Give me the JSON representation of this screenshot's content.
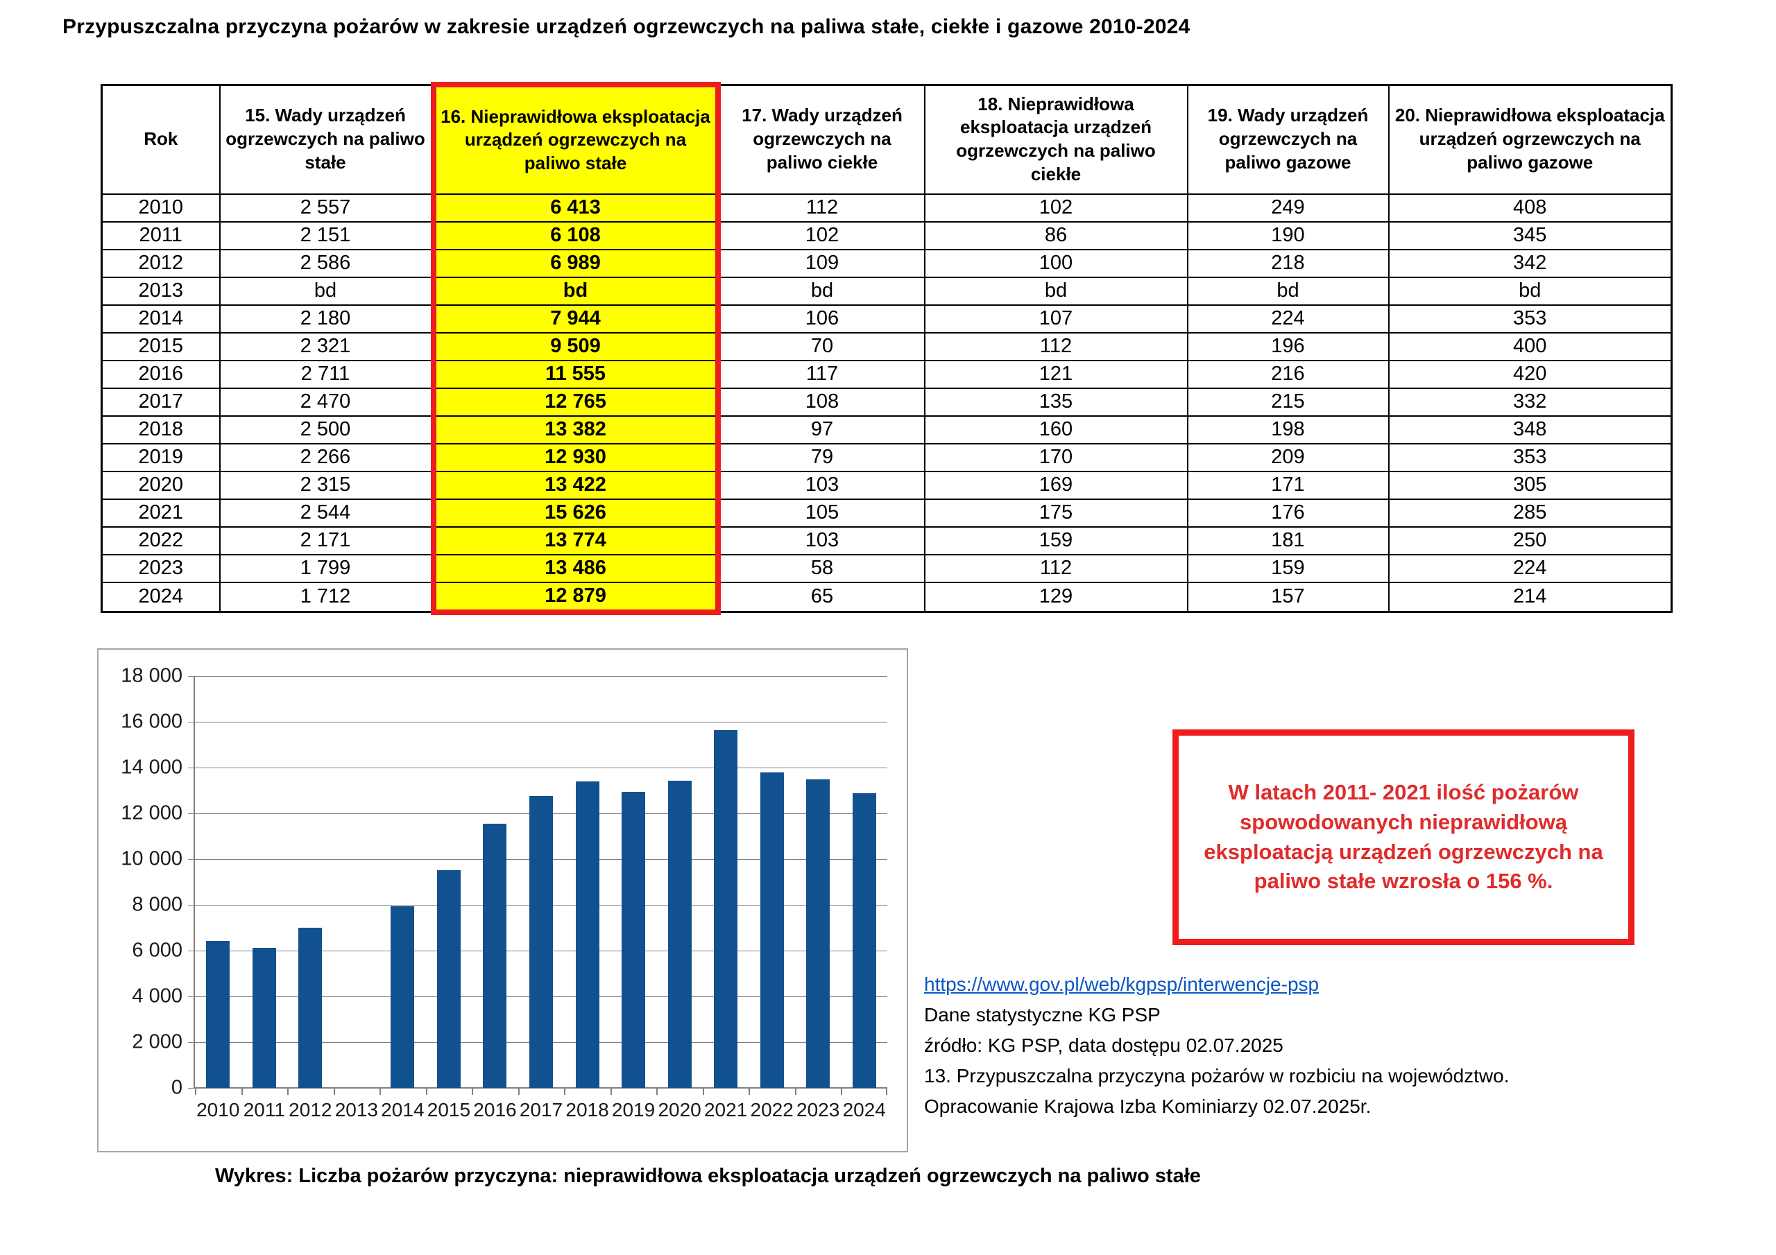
{
  "title": "Przypuszczalna przyczyna pożarów w zakresie urządzeń ogrzewczych na paliwa stałe, ciekłe i gazowe 2010-2024",
  "table": {
    "headers": [
      "Rok",
      "15. Wady urządzeń ogrzewczych na paliwo stałe",
      "16. Nieprawidłowa eksploatacja urządzeń ogrzewczych na paliwo stałe",
      "17. Wady urządzeń ogrzewczych na paliwo ciekłe",
      "18. Nieprawidłowa eksploatacja urządzeń ogrzewczych na paliwo ciekłe",
      "19. Wady urządzeń ogrzewczych na paliwo gazowe",
      "20. Nieprawidłowa eksploatacja urządzeń ogrzewczych na paliwo gazowe"
    ],
    "rows": [
      [
        "2010",
        "2 557",
        "6 413",
        "112",
        "102",
        "249",
        "408"
      ],
      [
        "2011",
        "2 151",
        "6 108",
        "102",
        "86",
        "190",
        "345"
      ],
      [
        "2012",
        "2 586",
        "6 989",
        "109",
        "100",
        "218",
        "342"
      ],
      [
        "2013",
        "bd",
        "bd",
        "bd",
        "bd",
        "bd",
        "bd"
      ],
      [
        "2014",
        "2 180",
        "7 944",
        "106",
        "107",
        "224",
        "353"
      ],
      [
        "2015",
        "2 321",
        "9 509",
        "70",
        "112",
        "196",
        "400"
      ],
      [
        "2016",
        "2 711",
        "11 555",
        "117",
        "121",
        "216",
        "420"
      ],
      [
        "2017",
        "2 470",
        "12 765",
        "108",
        "135",
        "215",
        "332"
      ],
      [
        "2018",
        "2 500",
        "13 382",
        "97",
        "160",
        "198",
        "348"
      ],
      [
        "2019",
        "2 266",
        "12 930",
        "79",
        "170",
        "209",
        "353"
      ],
      [
        "2020",
        "2 315",
        "13 422",
        "103",
        "169",
        "171",
        "305"
      ],
      [
        "2021",
        "2 544",
        "15 626",
        "105",
        "175",
        "176",
        "285"
      ],
      [
        "2022",
        "2 171",
        "13 774",
        "103",
        "159",
        "181",
        "250"
      ],
      [
        "2023",
        "1 799",
        "13 486",
        "58",
        "112",
        "159",
        "224"
      ],
      [
        "2024",
        "1 712",
        "12 879",
        "65",
        "129",
        "157",
        "214"
      ]
    ]
  },
  "chart_data": {
    "type": "bar",
    "categories": [
      "2010",
      "2011",
      "2012",
      "2013",
      "2014",
      "2015",
      "2016",
      "2017",
      "2018",
      "2019",
      "2020",
      "2021",
      "2022",
      "2023",
      "2024"
    ],
    "values": [
      6413,
      6108,
      6989,
      null,
      7944,
      9509,
      11555,
      12765,
      13382,
      12930,
      13422,
      15626,
      13774,
      13486,
      12879
    ],
    "title": "",
    "xlabel": "",
    "ylabel": "",
    "ylim": [
      0,
      18000
    ],
    "ytick_step": 2000,
    "ytick_labels": [
      "0",
      "2 000",
      "4 000",
      "6 000",
      "8 000",
      "10 000",
      "12 000",
      "14 000",
      "16 000",
      "18 000"
    ],
    "grid": true,
    "legend": "none",
    "bar_color": "#12518f",
    "note": "no bar for 2013 (bd = brak danych)"
  },
  "annotation_box": {
    "text": "W latach  2011- 2021 ilość pożarów spowodowanych nieprawidłową eksploatacją urządzeń ogrzewczych na paliwo stałe wzrosła o 156 %."
  },
  "sources": {
    "link": "https://www.gov.pl/web/kgpsp/interwencje-psp",
    "lines": [
      "Dane statystyczne KG PSP",
      "źródło: KG PSP, data dostępu 02.07.2025",
      "13. Przypuszczalna przyczyna pożarów w rozbiciu na województwo.",
      "Opracowanie Krajowa Izba Kominiarzy  02.07.2025r."
    ]
  },
  "caption": "Wykres:  Liczba pożarów przyczyna: nieprawidłowa eksploatacja urządzeń ogrzewczych na paliwo stałe",
  "colors": {
    "bar": "#12518f",
    "highlight_yellow": "#ffff00",
    "highlight_red": "#ee1c1c",
    "red_text": "#e02b2b",
    "link": "#0a56c4",
    "grid": "#808080",
    "frame": "#a6a6a6"
  }
}
